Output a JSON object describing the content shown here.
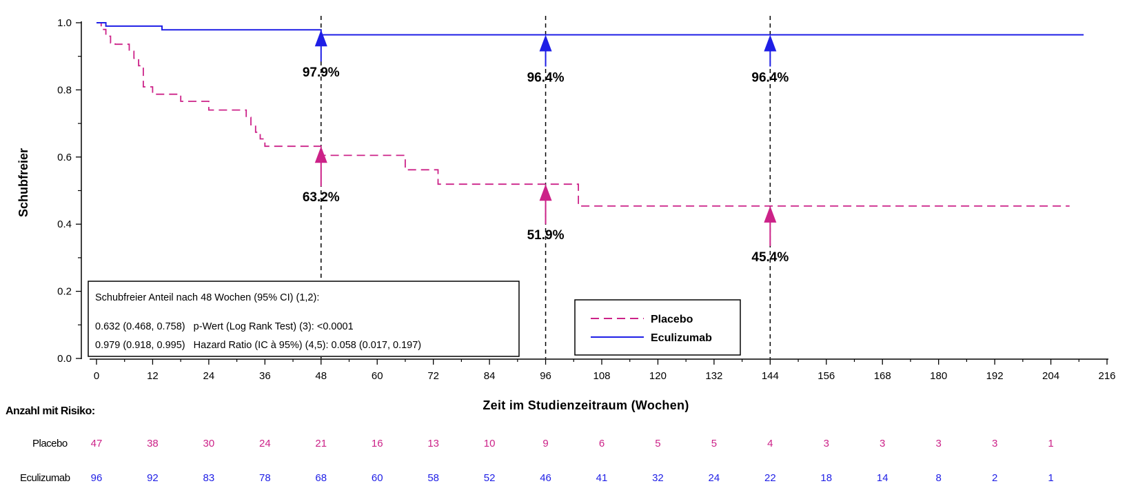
{
  "chart_data": {
    "type": "line",
    "subtype": "kaplan-meier step curve",
    "xlabel": "Zeit im Studienzeitraum (Wochen)",
    "ylabel": "Schubfreier",
    "xlim": [
      0,
      216
    ],
    "ylim": [
      0,
      1
    ],
    "x_ticks": [
      "0",
      "12",
      "24",
      "36",
      "48",
      "60",
      "72",
      "84",
      "96",
      "108",
      "120",
      "132",
      "144",
      "156",
      "168",
      "180",
      "192",
      "204",
      "216"
    ],
    "y_ticks": [
      "0.0",
      "0.2",
      "0.4",
      "0.6",
      "0.8",
      "1.0"
    ],
    "grid": false,
    "legend_position": "bottom-center",
    "reference_lines_x": [
      48,
      96,
      144
    ],
    "series": [
      {
        "name": "Placebo",
        "color": "#CC2288",
        "line_style": "dashed",
        "steps": [
          [
            0,
            1.0
          ],
          [
            1,
            0.98
          ],
          [
            2,
            0.96
          ],
          [
            3,
            0.94
          ],
          [
            4,
            0.936
          ],
          [
            7,
            0.915
          ],
          [
            8,
            0.894
          ],
          [
            9,
            0.872
          ],
          [
            10,
            0.809
          ],
          [
            12,
            0.787
          ],
          [
            18,
            0.766
          ],
          [
            24,
            0.74
          ],
          [
            32,
            0.718
          ],
          [
            33,
            0.696
          ],
          [
            34,
            0.674
          ],
          [
            35,
            0.654
          ],
          [
            36,
            0.632
          ],
          [
            48,
            0.605
          ],
          [
            65,
            0.605
          ],
          [
            66,
            0.562
          ],
          [
            73,
            0.519
          ],
          [
            96,
            0.519
          ],
          [
            103,
            0.454
          ],
          [
            208,
            0.454
          ]
        ],
        "annotations": [
          {
            "x": 48,
            "y": 0.632,
            "label": "63.2%"
          },
          {
            "x": 96,
            "y": 0.519,
            "label": "51.9%"
          },
          {
            "x": 144,
            "y": 0.454,
            "label": "45.4%"
          }
        ],
        "at_risk": [
          "47",
          "38",
          "30",
          "24",
          "21",
          "16",
          "13",
          "10",
          "9",
          "6",
          "5",
          "5",
          "4",
          "3",
          "3",
          "3",
          "3",
          "1"
        ]
      },
      {
        "name": "Eculizumab",
        "color": "#1E1EE6",
        "line_style": "solid",
        "steps": [
          [
            0,
            1.0
          ],
          [
            2,
            0.99
          ],
          [
            14,
            0.979
          ],
          [
            48,
            0.964
          ],
          [
            211,
            0.964
          ]
        ],
        "annotations": [
          {
            "x": 48,
            "y": 0.979,
            "label": "97.9%"
          },
          {
            "x": 96,
            "y": 0.964,
            "label": "96.4%"
          },
          {
            "x": 144,
            "y": 0.964,
            "label": "96.4%"
          }
        ],
        "at_risk": [
          "96",
          "92",
          "83",
          "78",
          "68",
          "60",
          "58",
          "52",
          "46",
          "41",
          "32",
          "24",
          "22",
          "18",
          "14",
          "8",
          "2",
          "1"
        ]
      }
    ],
    "at_risk_title": "Anzahl mit Risiko:",
    "stats_box": [
      "Schubfreier Anteil nach 48 Wochen (95% CI) (1,2):",
      "0.632 (0.468, 0.758)   p-Wert (Log Rank Test) (3): <0.0001",
      "0.979 (0.918, 0.995)   Hazard Ratio (IC à 95%) (4,5): 0.058 (0.017, 0.197)"
    ]
  }
}
